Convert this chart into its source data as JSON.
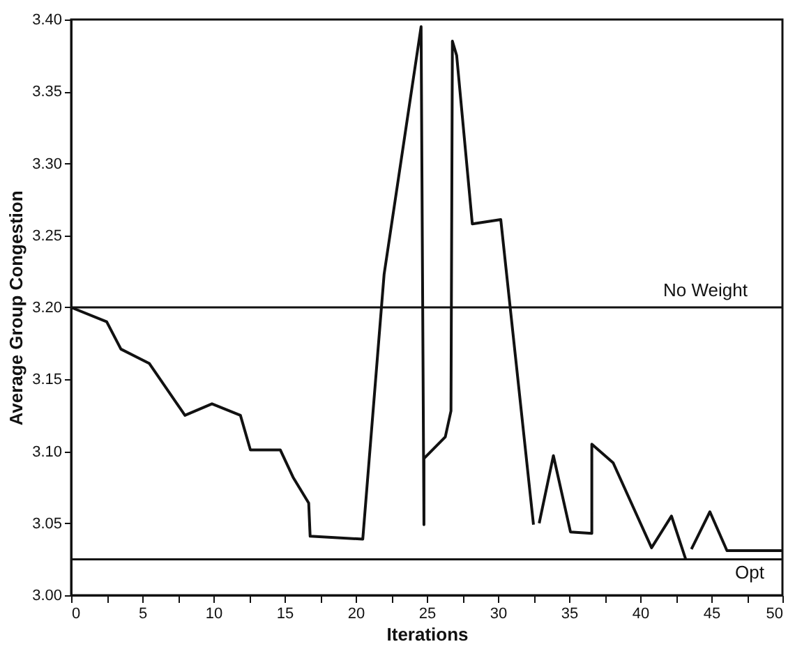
{
  "chart_data": {
    "type": "line",
    "xlabel": "Iterations",
    "ylabel": "Average Group Congestion",
    "x": [
      0,
      2.5,
      3.5,
      5.5,
      8.0,
      9.9,
      11.9,
      12.6,
      14.7,
      15.6,
      16.7,
      16.8,
      20.5,
      22.0,
      24.6,
      24.8,
      24.8,
      26.3,
      26.7,
      26.8,
      27.1,
      28.2,
      30.2,
      32.5,
      32.7,
      32.9,
      33.9,
      35.1,
      36.6,
      36.6,
      38.1,
      40.8,
      42.2,
      43.2,
      43.4,
      43.6,
      44.9,
      46.1,
      50
    ],
    "series": [
      {
        "color": "#111111",
        "values": [
          3.2,
          3.19,
          3.171,
          3.161,
          3.125,
          3.133,
          3.125,
          3.101,
          3.101,
          3.082,
          3.064,
          3.041,
          3.039,
          3.223,
          3.395,
          3.049,
          3.095,
          3.11,
          3.128,
          3.385,
          3.375,
          3.258,
          3.261,
          3.049,
          null,
          3.05,
          3.097,
          3.044,
          3.043,
          3.105,
          3.092,
          3.033,
          3.055,
          3.025,
          null,
          3.032,
          3.058,
          3.031,
          3.031
        ]
      }
    ],
    "xlim": [
      0,
      50
    ],
    "ylim": [
      3.0,
      3.4
    ],
    "xticks": [
      0,
      {
        "value": 2.5,
        "label": null
      },
      5,
      {
        "value": 7.5,
        "label": null
      },
      10,
      {
        "value": 12.5,
        "label": null
      },
      15,
      {
        "value": 17.5,
        "label": null
      },
      20,
      {
        "value": 22.5,
        "label": null
      },
      25,
      {
        "value": 27.5,
        "label": null
      },
      30,
      {
        "value": 32.5,
        "label": null
      },
      35,
      {
        "value": 37.5,
        "label": null
      },
      40,
      {
        "value": 42.5,
        "label": null
      },
      45,
      {
        "value": 47.5,
        "label": null
      },
      50
    ],
    "yticks": [
      {
        "value": 3.0,
        "label": "3.00"
      },
      {
        "value": 3.05,
        "label": "3.05"
      },
      {
        "value": 3.1,
        "label": "3.10"
      },
      {
        "value": 3.15,
        "label": "3.15"
      },
      {
        "value": 3.2,
        "label": "3.20"
      },
      {
        "value": 3.25,
        "label": "3.25"
      },
      {
        "value": 3.3,
        "label": "3.30"
      },
      {
        "value": 3.35,
        "label": "3.35"
      },
      {
        "value": 3.4,
        "label": "3.40"
      }
    ],
    "ref_lines": [
      {
        "axis": "y",
        "value": 3.2,
        "label": "No Weight",
        "color": "#111111"
      },
      {
        "axis": "y",
        "value": 3.025,
        "label": "Opt",
        "color": "#111111"
      }
    ],
    "grid": false,
    "marker": "none",
    "line_style": "solid"
  }
}
